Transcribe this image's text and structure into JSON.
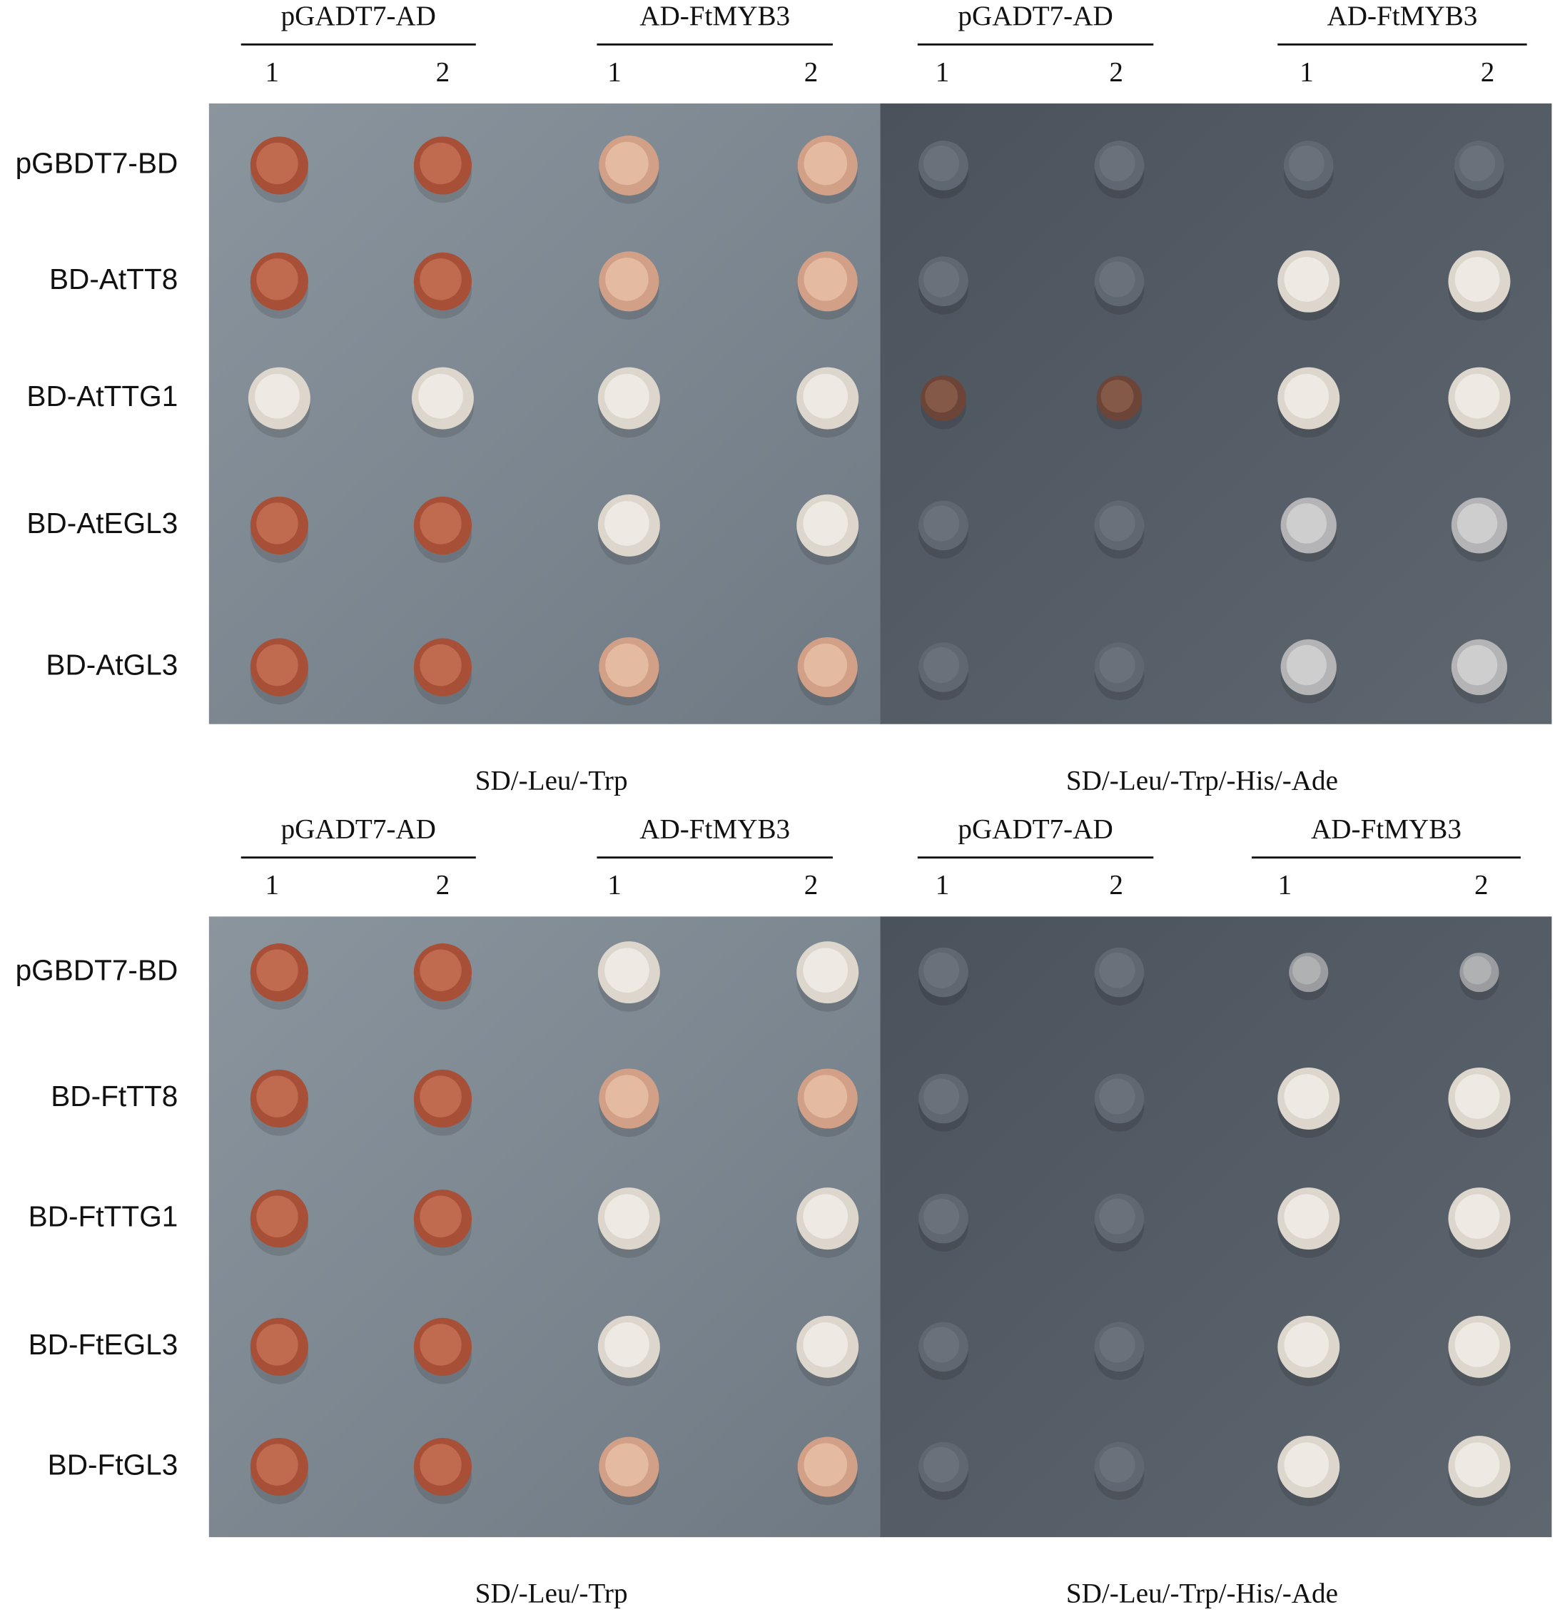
{
  "panels": [
    {
      "groups": [
        {
          "label": "pGADT7-AD",
          "lanes": [
            "1",
            "2"
          ]
        },
        {
          "label": "AD-FtMYB3",
          "lanes": [
            "1",
            "2"
          ]
        },
        {
          "label": "pGADT7-AD",
          "lanes": [
            "1",
            "2"
          ]
        },
        {
          "label": "AD-FtMYB3",
          "lanes": [
            "1",
            "2"
          ]
        }
      ],
      "rows": [
        "pGBDT7-BD",
        "BD-AtTT8",
        "BD-AtTTG1",
        "BD-AtEGL3",
        "BD-AtGL3"
      ],
      "captions": [
        "SD/-Leu/-Trp",
        "SD/-Leu/-Trp/-His/-Ade"
      ]
    },
    {
      "groups": [
        {
          "label": "pGADT7-AD",
          "lanes": [
            "1",
            "2"
          ]
        },
        {
          "label": "AD-FtMYB3",
          "lanes": [
            "1",
            "2"
          ]
        },
        {
          "label": "pGADT7-AD",
          "lanes": [
            "1",
            "2"
          ]
        },
        {
          "label": "AD-FtMYB3",
          "lanes": [
            "1",
            "2"
          ]
        }
      ],
      "rows": [
        "pGBDT7-BD",
        "BD-FtTT8",
        "BD-FtTTG1",
        "BD-FtEGL3",
        "BD-FtGL3"
      ],
      "captions": [
        "SD/-Leu/-Trp",
        "SD/-Leu/-Trp/-His/-Ade"
      ]
    }
  ]
}
